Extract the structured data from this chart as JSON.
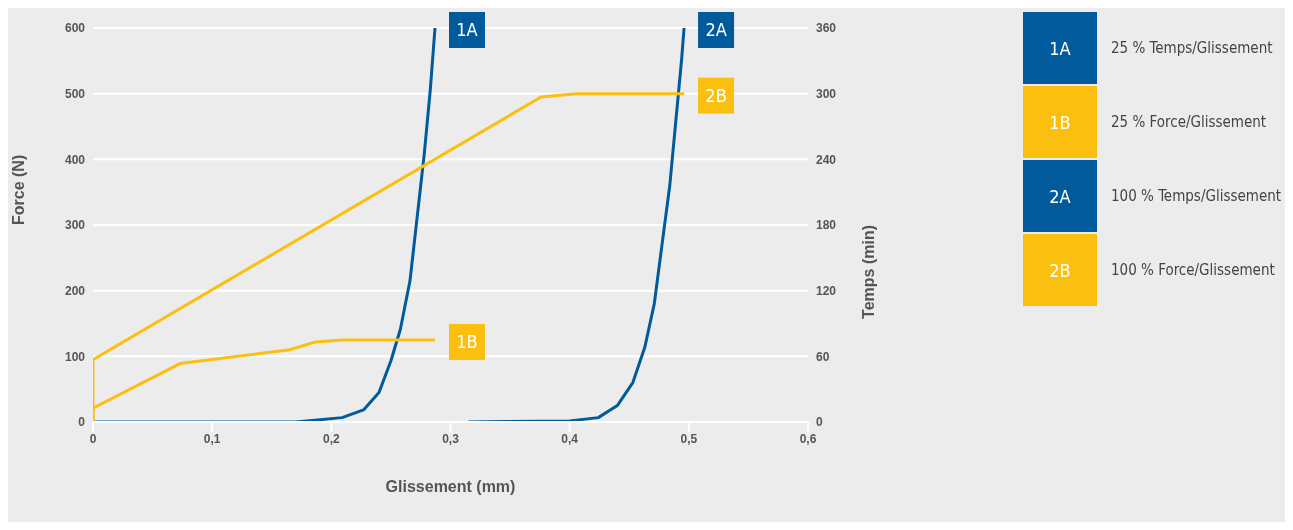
{
  "chart_data": {
    "type": "line",
    "xlabel": "Glissement (mm)",
    "ylabel": "Force (N)",
    "y2label": "Temps (min)",
    "xlim": [
      0,
      0.6
    ],
    "xticks": [
      {
        "value": 0,
        "label": "0"
      },
      {
        "value": 0.1,
        "label": "0,1"
      },
      {
        "value": 0.2,
        "label": "0,2"
      },
      {
        "value": 0.3,
        "label": "0,3"
      },
      {
        "value": 0.4,
        "label": "0,4"
      },
      {
        "value": 0.5,
        "label": "0,5"
      },
      {
        "value": 0.6,
        "label": "0,6"
      }
    ],
    "ylim": [
      0,
      600
    ],
    "yticks": [
      0,
      100,
      200,
      300,
      400,
      500,
      600
    ],
    "y2lim": [
      0,
      360
    ],
    "y2ticks": [
      0,
      60,
      120,
      180,
      240,
      300,
      360
    ],
    "grid": "y",
    "legend": "right",
    "series": [
      {
        "name": "1A",
        "color": "#005a9c",
        "axis": "y2",
        "x": [
          0,
          0.17,
          0.209,
          0.227,
          0.24,
          0.25,
          0.258,
          0.266,
          0.272,
          0.278,
          0.283,
          0.287
        ],
        "values": [
          0,
          0,
          4,
          11,
          27,
          56,
          85,
          129,
          187,
          245,
          303,
          360
        ]
      },
      {
        "name": "1B",
        "color": "#fbbf0f",
        "axis": "y",
        "x": [
          0,
          0,
          0.073,
          0.165,
          0.187,
          0.209,
          0.287
        ],
        "values": [
          0,
          21,
          89,
          110,
          122,
          125,
          125
        ]
      },
      {
        "name": "2A",
        "color": "#005a9c",
        "axis": "y2",
        "x": [
          0.315,
          0.4,
          0.424,
          0.44,
          0.453,
          0.463,
          0.471,
          0.477,
          0.484,
          0.489,
          0.494,
          0.496
        ],
        "values": [
          0,
          1,
          4,
          15,
          36,
          68,
          108,
          158,
          216,
          274,
          332,
          360
        ]
      },
      {
        "name": "2B",
        "color": "#fbbf0f",
        "axis": "y",
        "x": [
          0,
          0,
          0.376,
          0.406,
          0.496
        ],
        "values": [
          0,
          95,
          495,
          500,
          500
        ]
      }
    ],
    "annotations": [
      "25 % Temps/Glissement",
      "25 % Force/Glissement",
      "100 % Temps/Glissement",
      "100 % Force/Glissement"
    ]
  }
}
